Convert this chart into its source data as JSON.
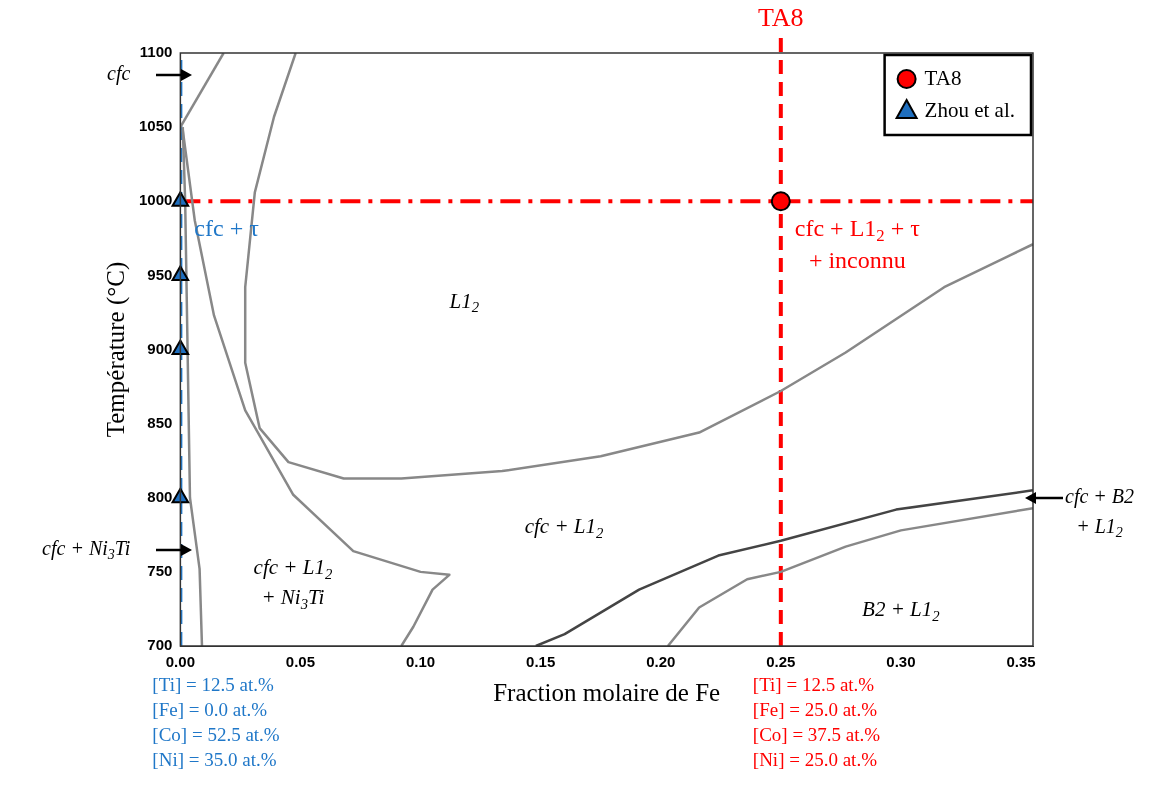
{
  "chart_data": {
    "type": "line",
    "xlabel": "Fraction molaire de Fe",
    "ylabel": "Température (°C)",
    "xlim": [
      0,
      0.355
    ],
    "ylim": [
      700,
      1100
    ],
    "xticks": [
      {
        "value": 0,
        "label": "0.00"
      },
      {
        "value": 0.05,
        "label": "0.05"
      },
      {
        "value": 0.1,
        "label": "0.10"
      },
      {
        "value": 0.15,
        "label": "0.15"
      },
      {
        "value": 0.2,
        "label": "0.20"
      },
      {
        "value": 0.25,
        "label": "0.25"
      },
      {
        "value": 0.3,
        "label": "0.30"
      },
      {
        "value": 0.35,
        "label": "0.35"
      }
    ],
    "yticks": [
      700,
      750,
      800,
      850,
      900,
      950,
      1000,
      1050,
      1100
    ],
    "grid": false,
    "legend": "top right",
    "series": [
      {
        "color": "#888888",
        "x": [
          0,
          0.018
        ],
        "values": [
          1050,
          1100
        ]
      },
      {
        "color": "#888888",
        "x": [
          0.001,
          0.002,
          0.003,
          0.004,
          0.008,
          0.009
        ],
        "values": [
          1050,
          1000,
          900,
          800,
          752,
          700
        ]
      },
      {
        "color": "#888888",
        "x": [
          0.001,
          0.006,
          0.014,
          0.027,
          0.047,
          0.072,
          0.1,
          0.112,
          0.105,
          0.097,
          0.092
        ],
        "values": [
          1048,
          987,
          923,
          859,
          802,
          764,
          750,
          748,
          738,
          713,
          700
        ]
      },
      {
        "color": "#888888",
        "x": [
          0.048,
          0.039,
          0.031,
          0.027,
          0.027,
          0.033,
          0.045,
          0.068,
          0.092,
          0.134,
          0.175,
          0.216,
          0.25,
          0.277,
          0.318,
          0.355
        ],
        "values": [
          1100,
          1057,
          1006,
          942,
          891,
          847,
          824,
          813,
          813,
          818,
          828,
          844,
          872,
          898,
          942,
          971
        ]
      },
      {
        "color": "#444444",
        "x": [
          0.148,
          0.16,
          0.191,
          0.224,
          0.25,
          0.298,
          0.355
        ],
        "values": [
          700,
          708,
          738,
          761,
          771,
          792,
          805
        ]
      },
      {
        "color": "#888888",
        "x": [
          0.203,
          0.216,
          0.236,
          0.25,
          0.277,
          0.3,
          0.355
        ],
        "values": [
          700,
          726,
          745,
          750,
          767,
          778,
          793
        ]
      },
      {
        "type": "scatter",
        "name": "TA8",
        "color": "#ff0000",
        "marker": "circle",
        "x": [
          0.25
        ],
        "values": [
          1000
        ]
      },
      {
        "type": "scatter",
        "name": "Zhou et al.",
        "color": "#1f6fbf",
        "marker": "triangle",
        "x": [
          0,
          0,
          0,
          0
        ],
        "values": [
          1000,
          950,
          900,
          800
        ]
      }
    ],
    "ref_lines": [
      {
        "axis": "x",
        "value": 0.25,
        "label": "TA8",
        "color": "#ff0000",
        "line_style": "dashed"
      },
      {
        "axis": "y",
        "value": 1000,
        "color": "#ff0000",
        "line_style": "dashdot"
      },
      {
        "axis": "x",
        "value": 0,
        "color": "#1f77c8",
        "line_style": "dashed"
      }
    ],
    "annotations": [
      {
        "text": "cfc + τ",
        "x": 0,
        "y": 1000
      },
      {
        "text": "cfc + L1$_{2}$ + τ\n+ inconnu",
        "x": 0.25,
        "y": 1000
      },
      "L1$_{2}$",
      "cfc + L1$_{2}$",
      "cfc + L1$_{2}$\n+ Ni$_{3}$Ti",
      "B2 + L1$_{2}$",
      "cfc",
      "cfc + Ni$_{3}$Ti",
      "cfc + B2\n+ L1$_{2}$",
      "[Ti] = 12.5 at.%",
      "[Fe] = 0.0 at.%",
      "[Co] = 52.5 at.%",
      "[Ni] = 35.0 at.%",
      "[Ti] = 12.5 at.%",
      "[Fe] = 25.0 at.%",
      "[Co] = 37.5 at.%",
      "[Ni] = 25.0 at.%"
    ]
  }
}
